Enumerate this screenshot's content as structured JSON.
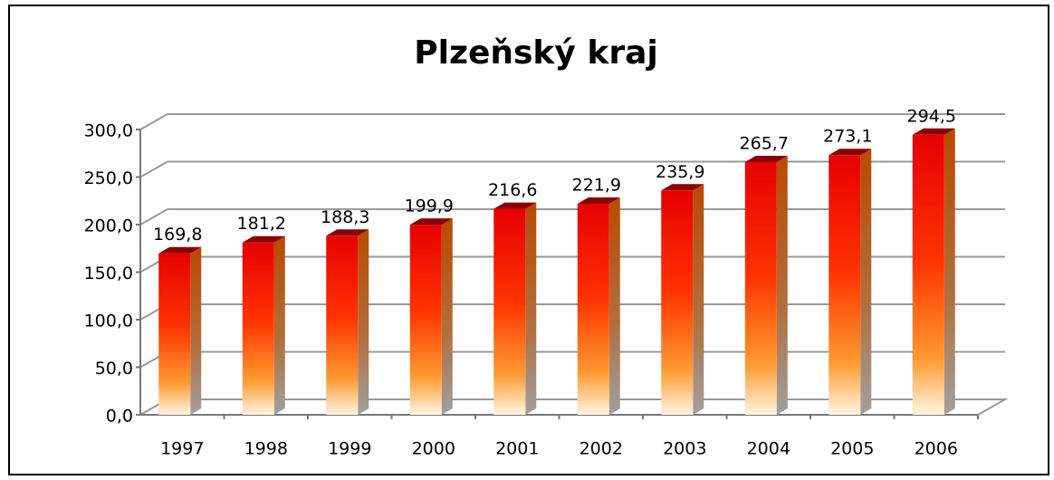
{
  "chart_data": {
    "type": "bar",
    "title": "Plzeňský kraj",
    "categories": [
      "1997",
      "1998",
      "1999",
      "2000",
      "2001",
      "2002",
      "2003",
      "2004",
      "2005",
      "2006"
    ],
    "values": [
      169.8,
      181.2,
      188.3,
      199.9,
      216.6,
      221.9,
      235.9,
      265.7,
      273.1,
      294.5
    ],
    "value_labels": [
      "169,8",
      "181,2",
      "188,3",
      "199,9",
      "216,6",
      "221,9",
      "235,9",
      "265,7",
      "273,1",
      "294,5"
    ],
    "color": "#ff2a00",
    "ylim": [
      0,
      300
    ],
    "yticks": [
      {
        "value": 0,
        "label": "0,0"
      },
      {
        "value": 50,
        "label": "50,0"
      },
      {
        "value": 100,
        "label": "100,0"
      },
      {
        "value": 150,
        "label": "150,0"
      },
      {
        "value": 200,
        "label": "200,0"
      },
      {
        "value": 250,
        "label": "250,0"
      },
      {
        "value": 300,
        "label": "300,0"
      }
    ],
    "grid": true
  }
}
